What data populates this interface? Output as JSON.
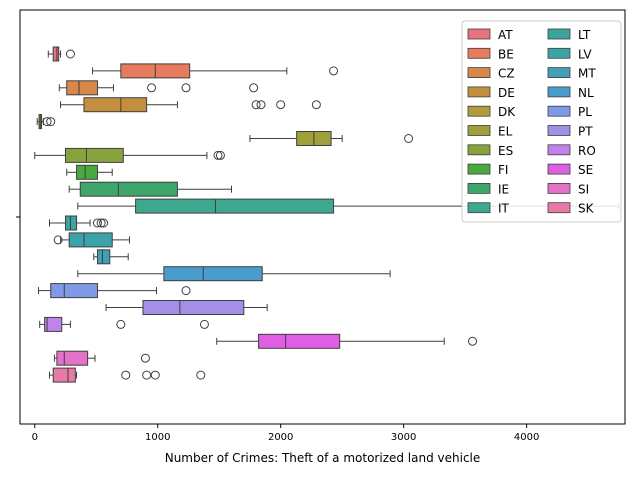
{
  "chart_data": {
    "type": "boxplot",
    "orientation": "horizontal",
    "xlabel": "Number of Crimes: Theft of a motorized land vehicle",
    "ylabel": "",
    "xlim": [
      -120,
      4800
    ],
    "xticks": [
      0,
      1000,
      2000,
      3000,
      4000
    ],
    "grid": false,
    "legend_placement": "top-right",
    "legend_columns": 2,
    "series": [
      {
        "name": "AT",
        "color": "#e8727f",
        "min": 110,
        "q1": 150,
        "median": 180,
        "q3": 195,
        "max": 210,
        "outliers": [
          290
        ]
      },
      {
        "name": "BE",
        "color": "#e67b5d",
        "min": 470,
        "q1": 700,
        "median": 980,
        "q3": 1260,
        "max": 2050,
        "outliers": [
          2430
        ]
      },
      {
        "name": "CZ",
        "color": "#d8884a",
        "min": 200,
        "q1": 260,
        "median": 360,
        "q3": 510,
        "max": 640,
        "outliers": [
          950,
          1230,
          1780
        ]
      },
      {
        "name": "DE",
        "color": "#c38f3f",
        "min": 210,
        "q1": 400,
        "median": 700,
        "q3": 910,
        "max": 1160,
        "outliers": [
          1800,
          1840,
          2000,
          2290
        ]
      },
      {
        "name": "DK",
        "color": "#b29a3f",
        "min": 20,
        "q1": 35,
        "median": 45,
        "q3": 55,
        "max": 70,
        "outliers": [
          100,
          130
        ]
      },
      {
        "name": "EL",
        "color": "#a09f3c",
        "min": 1750,
        "q1": 2130,
        "median": 2270,
        "q3": 2410,
        "max": 2500,
        "outliers": [
          3040
        ]
      },
      {
        "name": "ES",
        "color": "#88a23e",
        "min": 0,
        "q1": 250,
        "median": 420,
        "q3": 720,
        "max": 1400,
        "outliers": [
          1490,
          1510
        ]
      },
      {
        "name": "FI",
        "color": "#4aa93e",
        "min": 260,
        "q1": 340,
        "median": 410,
        "q3": 510,
        "max": 630,
        "outliers": []
      },
      {
        "name": "IE",
        "color": "#3ea66b",
        "min": 280,
        "q1": 370,
        "median": 680,
        "q3": 1160,
        "max": 1600,
        "outliers": []
      },
      {
        "name": "IT",
        "color": "#3ea78f",
        "min": 350,
        "q1": 820,
        "median": 1470,
        "q3": 2430,
        "max": 4750,
        "outliers": []
      },
      {
        "name": "LT",
        "color": "#3ca59b",
        "min": 120,
        "q1": 250,
        "median": 290,
        "q3": 340,
        "max": 450,
        "outliers": [
          510,
          540,
          560
        ]
      },
      {
        "name": "LV",
        "color": "#3ea3a8",
        "min": 210,
        "q1": 280,
        "median": 400,
        "q3": 630,
        "max": 770,
        "outliers": [
          190
        ]
      },
      {
        "name": "MT",
        "color": "#41a0b5",
        "min": 480,
        "q1": 510,
        "median": 550,
        "q3": 610,
        "max": 760,
        "outliers": []
      },
      {
        "name": "NL",
        "color": "#4a9ccd",
        "min": 350,
        "q1": 1050,
        "median": 1370,
        "q3": 1850,
        "max": 2890,
        "outliers": []
      },
      {
        "name": "PL",
        "color": "#7f9ae6",
        "min": 30,
        "q1": 130,
        "median": 240,
        "q3": 510,
        "max": 990,
        "outliers": [
          1230
        ]
      },
      {
        "name": "PT",
        "color": "#a48fe7",
        "min": 580,
        "q1": 880,
        "median": 1180,
        "q3": 1700,
        "max": 1890,
        "outliers": []
      },
      {
        "name": "RO",
        "color": "#c083e9",
        "min": 40,
        "q1": 80,
        "median": 100,
        "q3": 220,
        "max": 290,
        "outliers": [
          700,
          1380
        ]
      },
      {
        "name": "SE",
        "color": "#e05ee4",
        "min": 1480,
        "q1": 1820,
        "median": 2040,
        "q3": 2480,
        "max": 3330,
        "outliers": [
          3560
        ]
      },
      {
        "name": "SI",
        "color": "#e473c7",
        "min": 160,
        "q1": 180,
        "median": 240,
        "q3": 430,
        "max": 490,
        "outliers": [
          900
        ]
      },
      {
        "name": "SK",
        "color": "#e87aa8",
        "min": 120,
        "q1": 150,
        "median": 270,
        "q3": 330,
        "max": 340,
        "outliers": [
          740,
          910,
          980,
          1350
        ]
      }
    ]
  }
}
